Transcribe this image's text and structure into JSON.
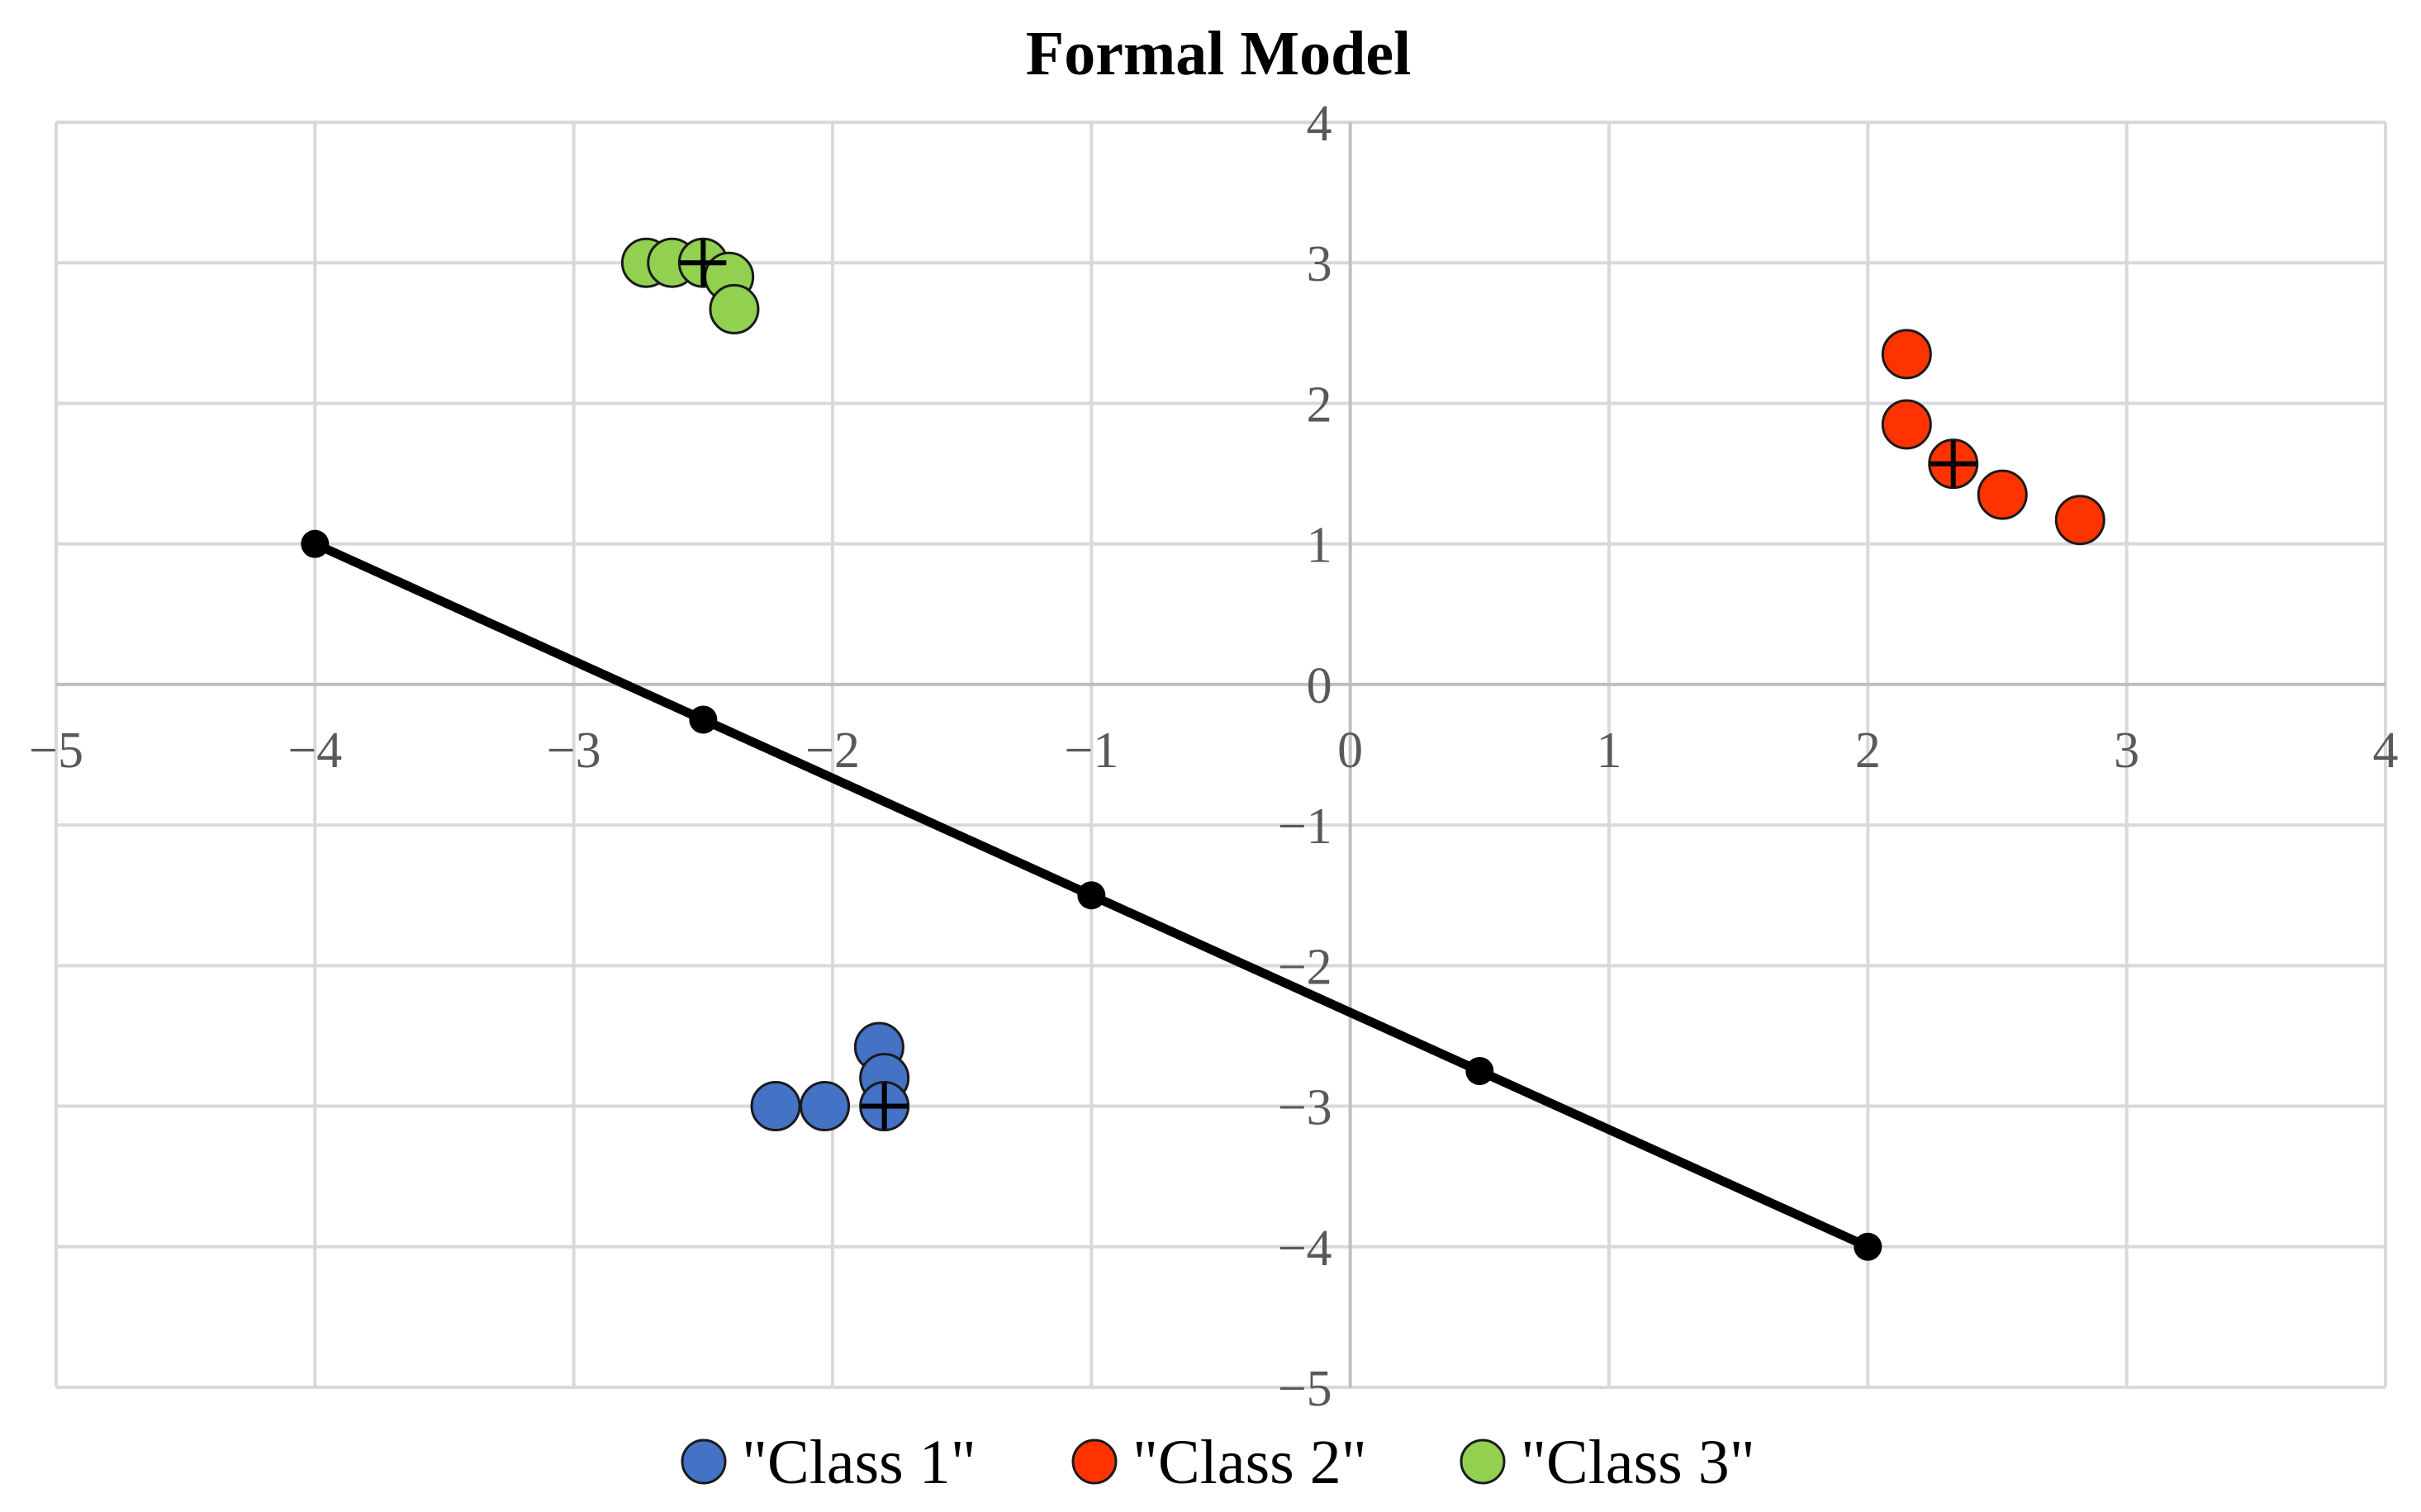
{
  "chart_data": {
    "type": "scatter",
    "title": "Formal Model",
    "xlabel": "",
    "ylabel": "",
    "xlim": [
      -5,
      4
    ],
    "ylim": [
      -5,
      4
    ],
    "x_ticks": [
      "−5",
      "−4",
      "−3",
      "−2",
      "−1",
      "0",
      "1",
      "2",
      "3",
      "4"
    ],
    "y_ticks": [
      "4",
      "3",
      "2",
      "1",
      "0",
      "−1",
      "−2",
      "−3",
      "−4",
      "−5"
    ],
    "grid": true,
    "legend_position": "bottom",
    "series": [
      {
        "name": "\"Class 1\"",
        "color": "#4472C4",
        "points": [
          [
            -2.22,
            -3.0
          ],
          [
            -2.03,
            -3.0
          ],
          [
            -1.82,
            -2.58
          ],
          [
            -1.8,
            -2.8
          ],
          [
            -1.8,
            -3.0
          ]
        ],
        "centroid": [
          -1.8,
          -3.0
        ]
      },
      {
        "name": "\"Class 2\"",
        "color": "#FF3300",
        "points": [
          [
            2.15,
            2.35
          ],
          [
            2.15,
            1.85
          ],
          [
            2.33,
            1.57
          ],
          [
            2.52,
            1.35
          ],
          [
            2.82,
            1.17
          ]
        ],
        "centroid": [
          2.33,
          1.57
        ]
      },
      {
        "name": "\"Class 3\"",
        "color": "#92D050",
        "points": [
          [
            -2.72,
            3.0
          ],
          [
            -2.62,
            3.0
          ],
          [
            -2.5,
            3.0
          ],
          [
            -2.4,
            2.9
          ],
          [
            -2.38,
            2.67
          ]
        ],
        "centroid": [
          -2.5,
          3.0
        ]
      }
    ],
    "line": {
      "color": "#000000",
      "points": [
        [
          -4.0,
          1.0
        ],
        [
          -2.5,
          -0.25
        ],
        [
          -1.0,
          -1.5
        ],
        [
          0.5,
          -2.75
        ],
        [
          2.0,
          -4.0
        ]
      ]
    }
  }
}
